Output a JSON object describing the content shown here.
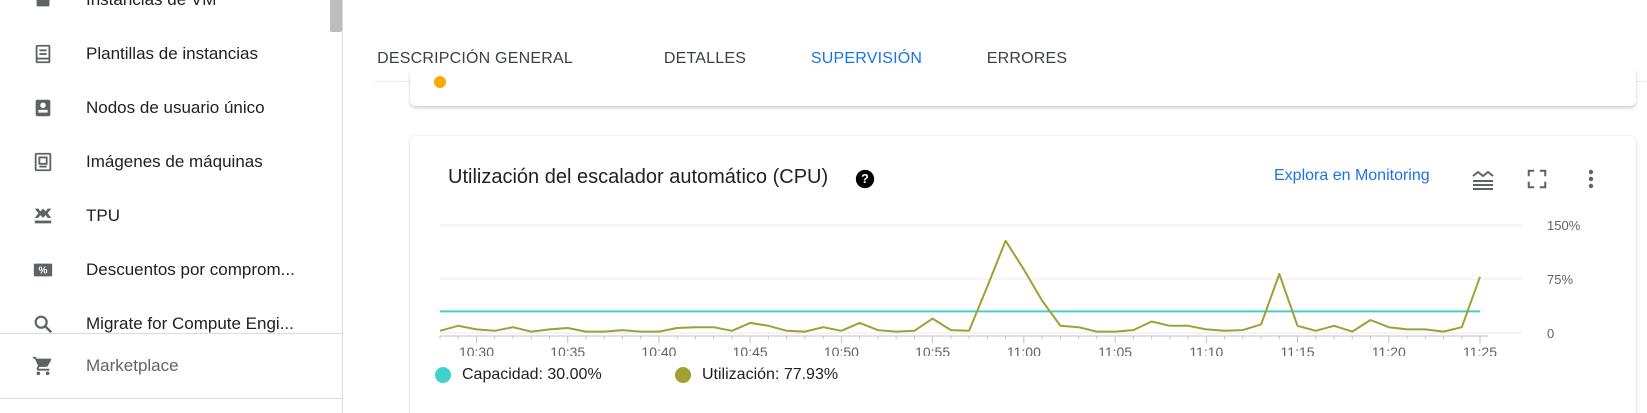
{
  "sidebar": {
    "items": [
      {
        "label": "Instancias de VM",
        "icon": "vm-instances-icon"
      },
      {
        "label": "Plantillas de instancias",
        "icon": "instance-templates-icon"
      },
      {
        "label": "Nodos de usuario único",
        "icon": "sole-tenant-nodes-icon"
      },
      {
        "label": "Imágenes de máquinas",
        "icon": "machine-images-icon"
      },
      {
        "label": "TPU",
        "icon": "tpu-icon"
      },
      {
        "label": "Descuentos por comprom...",
        "icon": "committed-use-discounts-icon"
      },
      {
        "label": "Migrate for Compute Engi...",
        "icon": "search-icon"
      }
    ],
    "marketplace": {
      "label": "Marketplace",
      "icon": "cart-icon"
    }
  },
  "tabs": [
    {
      "label": "DESCRIPCIÓN GENERAL",
      "active": false
    },
    {
      "label": "DETALLES",
      "active": false
    },
    {
      "label": "SUPERVISIÓN",
      "active": true
    },
    {
      "label": "ERRORES",
      "active": false
    }
  ],
  "card": {
    "title": "Utilización del escalador automático (CPU)",
    "help_icon": "help-circle-icon",
    "explore_link": "Explora en Monitoring",
    "tools": [
      "legend-toggle-icon",
      "fullscreen-icon",
      "more-vert-icon"
    ]
  },
  "colors": {
    "accent": "#1a73e8",
    "capacity": "#3fd1cf",
    "utilization": "#a0a034"
  },
  "chart_data": {
    "type": "line",
    "x_ticks": [
      "10:30",
      "10:35",
      "10:40",
      "10:45",
      "10:50",
      "10:55",
      "11:00",
      "11:05",
      "11:10",
      "11:15",
      "11:20",
      "11:25"
    ],
    "y_ticks": [
      "150%",
      "75%",
      "0"
    ],
    "ylim": [
      0,
      150
    ],
    "x_minutes_start": "10:28",
    "x_minutes_end": "11:25",
    "series": [
      {
        "name": "Capacidad",
        "color": "#3fd1cf",
        "x": [
          "10:28",
          "11:25"
        ],
        "values": [
          30,
          30
        ]
      },
      {
        "name": "Utilización",
        "color": "#a0a034",
        "x": [
          "10:28",
          "10:29",
          "10:30",
          "10:31",
          "10:32",
          "10:33",
          "10:34",
          "10:35",
          "10:36",
          "10:37",
          "10:38",
          "10:39",
          "10:40",
          "10:41",
          "10:42",
          "10:43",
          "10:44",
          "10:45",
          "10:46",
          "10:47",
          "10:48",
          "10:49",
          "10:50",
          "10:51",
          "10:52",
          "10:53",
          "10:54",
          "10:55",
          "10:56",
          "10:57",
          "10:58",
          "10:59",
          "11:00",
          "11:01",
          "11:02",
          "11:03",
          "11:04",
          "11:05",
          "11:06",
          "11:07",
          "11:08",
          "11:09",
          "11:10",
          "11:11",
          "11:12",
          "11:13",
          "11:14",
          "11:15",
          "11:16",
          "11:17",
          "11:18",
          "11:19",
          "11:20",
          "11:21",
          "11:22",
          "11:23",
          "11:24",
          "11:25"
        ],
        "values": [
          3,
          10,
          5,
          3,
          8,
          2,
          5,
          7,
          2,
          2,
          4,
          2,
          2,
          7,
          8,
          8,
          3,
          14,
          10,
          3,
          2,
          8,
          3,
          14,
          4,
          2,
          3,
          20,
          4,
          3,
          65,
          128,
          88,
          45,
          10,
          8,
          2,
          2,
          4,
          16,
          10,
          10,
          5,
          3,
          4,
          12,
          82,
          10,
          3,
          10,
          2,
          18,
          8,
          5,
          5,
          2,
          8,
          78
        ]
      }
    ],
    "legend": [
      {
        "label": "Capacidad:",
        "value": "30.00%"
      },
      {
        "label": "Utilización:",
        "value": "77.93%"
      }
    ],
    "legend_position": "bottom",
    "grid": true
  }
}
